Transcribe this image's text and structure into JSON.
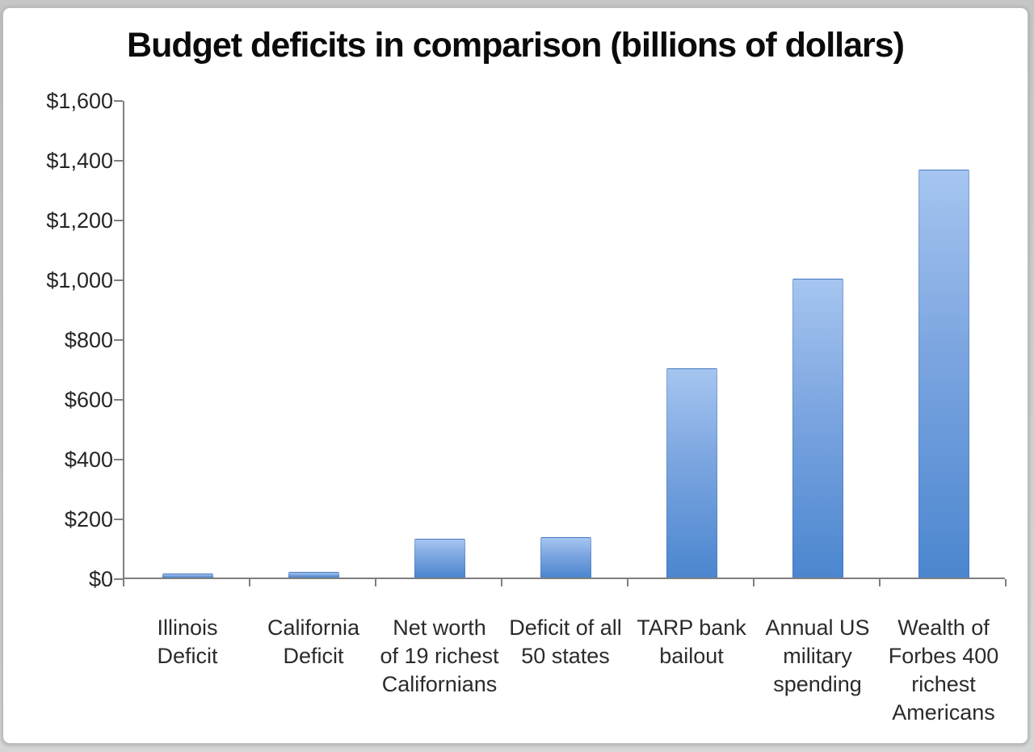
{
  "chart_data": {
    "type": "bar",
    "title": "Budget deficits in comparison (billions of dollars)",
    "categories": [
      "Illinois\nDeficit",
      "California\nDeficit",
      "Net worth\nof 19 richest\nCalifornians",
      "Deficit of all\n50 states",
      "TARP bank\nbailout",
      "Annual US\nmilitary\nspending",
      "Wealth of\nForbes 400\nrichest\nAmericans"
    ],
    "values": [
      13,
      19,
      130,
      135,
      700,
      1000,
      1365
    ],
    "xlabel": "",
    "ylabel": "",
    "ylim": [
      0,
      1600
    ],
    "y_tick_step": 200,
    "y_tick_labels_top_to_bottom": [
      "$1,600",
      "$1,400",
      "$1,200",
      "$1,000",
      "$800",
      "$600",
      "$400",
      "$200",
      "$0"
    ],
    "grid": "off",
    "legend": "none",
    "colors": {
      "bar_gradient_top": "#a6c5f0",
      "bar_gradient_bottom": "#4b86cf",
      "axis": "#7f7f7f",
      "title_text": "#0b0b0b",
      "tick_text": "#262626",
      "panel_background": "#ffffff",
      "page_background": "#cfcfcf"
    }
  }
}
